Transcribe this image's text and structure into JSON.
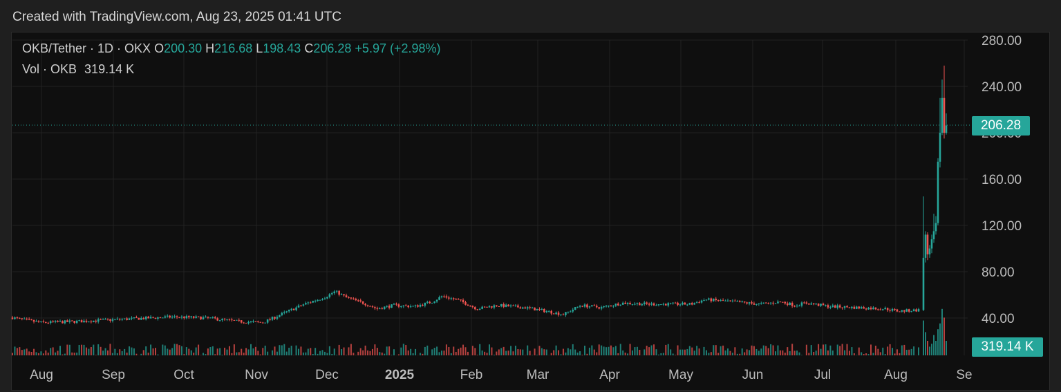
{
  "header": {
    "created_with": "Created with TradingView.com, Aug 23, 2025 01:41 UTC"
  },
  "legend": {
    "symbol": "OKB/Tether · 1D · OKX",
    "open_label": "O",
    "open": "200.30",
    "high_label": "H",
    "high": "216.68",
    "low_label": "L",
    "low": "198.43",
    "close_label": "C",
    "close": "206.28",
    "change": "+5.97 (+2.98%)",
    "vol_label": "Vol · OKB",
    "vol_value": "319.14 K"
  },
  "price_tag": "206.28",
  "volume_tag": "319.14 K",
  "colors": {
    "up": "#26a69a",
    "down": "#ef5350",
    "grid": "#222222",
    "text": "#bdbdbd"
  },
  "chart_data": {
    "type": "candlestick",
    "y_axis": {
      "ticks": [
        "280.00",
        "240.00",
        "200.00",
        "160.00",
        "120.00",
        "80.00",
        "40.00"
      ],
      "ylim": [
        0,
        280
      ],
      "position": "right"
    },
    "x_axis": {
      "ticks": [
        "Aug",
        "Sep",
        "Oct",
        "Nov",
        "Dec",
        "2025",
        "Feb",
        "Mar",
        "Apr",
        "May",
        "Jun",
        "Jul",
        "Aug",
        "Se"
      ]
    },
    "last_close": 206.28,
    "series": [
      {
        "name": "OKB/Tether",
        "x": [
          "2024-08",
          "2024-09",
          "2024-10",
          "2024-11",
          "2024-12",
          "2025-01",
          "2025-02",
          "2025-03",
          "2025-04",
          "2025-05",
          "2025-06",
          "2025-07",
          "2025-08",
          "2025-08-23"
        ],
        "close": [
          40,
          36,
          38,
          44,
          60,
          48,
          52,
          44,
          50,
          52,
          50,
          48,
          46,
          206.28
        ]
      }
    ]
  }
}
